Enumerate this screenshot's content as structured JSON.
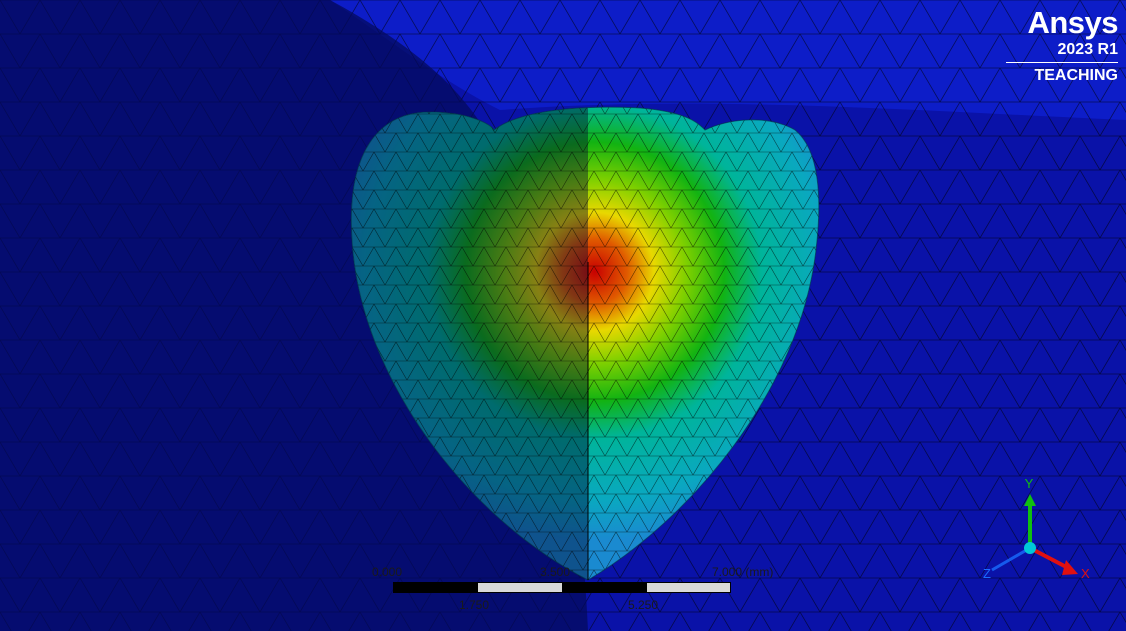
{
  "branding": {
    "name": "Ansys",
    "release": "2023 R1",
    "edition": "TEACHING"
  },
  "scale_bar": {
    "top_labels": [
      "0.000",
      "3.500",
      "7.000 (mm)"
    ],
    "bottom_labels": [
      "1.750",
      "5.250"
    ]
  },
  "triad": {
    "x_label": "X",
    "y_label": "Y",
    "z_label": "Z"
  },
  "colors": {
    "background": "#0a12a8",
    "shadow": "#050a6a",
    "contour_max": "#d10000",
    "contour_mid": "#e8e000",
    "contour_low": "#12b312",
    "contour_min": "#00b4c8",
    "axis_x": "#e01010",
    "axis_y": "#10c010",
    "axis_z": "#1a6cff"
  }
}
